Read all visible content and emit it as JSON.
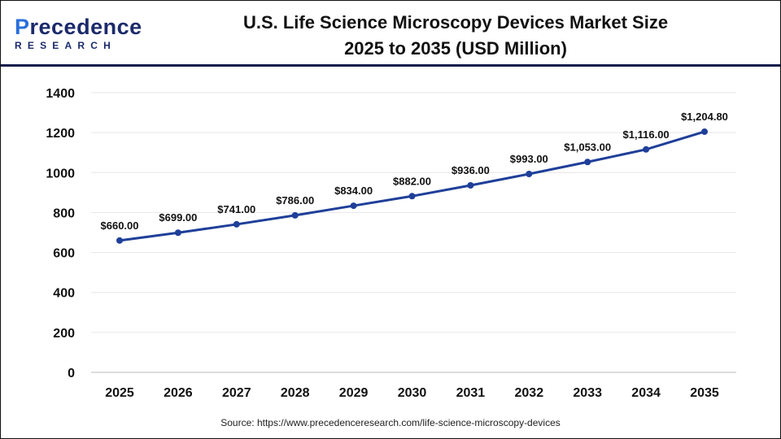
{
  "logo": {
    "line1_a": "P",
    "line1_b": "recedence",
    "line2": "RESEARCH"
  },
  "title_line1": "U.S. Life Science Microscopy Devices Market Size",
  "title_line2": "2025 to 2035 (USD Million)",
  "source": "Source: https://www.precedenceresearch.com/life-science-microscopy-devices",
  "chart_data": {
    "type": "line",
    "title": "U.S. Life Science Microscopy Devices Market Size 2025 to 2035 (USD Million)",
    "categories": [
      "2025",
      "2026",
      "2027",
      "2028",
      "2029",
      "2030",
      "2031",
      "2032",
      "2033",
      "2034",
      "2035"
    ],
    "values": [
      660,
      699,
      741,
      786,
      834,
      882,
      936,
      993,
      1053,
      1116,
      1204.8
    ],
    "data_labels": [
      "$660.00",
      "$699.00",
      "$741.00",
      "$786.00",
      "$834.00",
      "$882.00",
      "$936.00",
      "$993.00",
      "$1,053.00",
      "$1,116.00",
      "$1,204.80"
    ],
    "ylim": [
      0,
      1400
    ],
    "yticks": [
      0,
      200,
      400,
      600,
      800,
      1000,
      1200,
      1400
    ],
    "grid": true,
    "line_color": "#1f3f99"
  }
}
